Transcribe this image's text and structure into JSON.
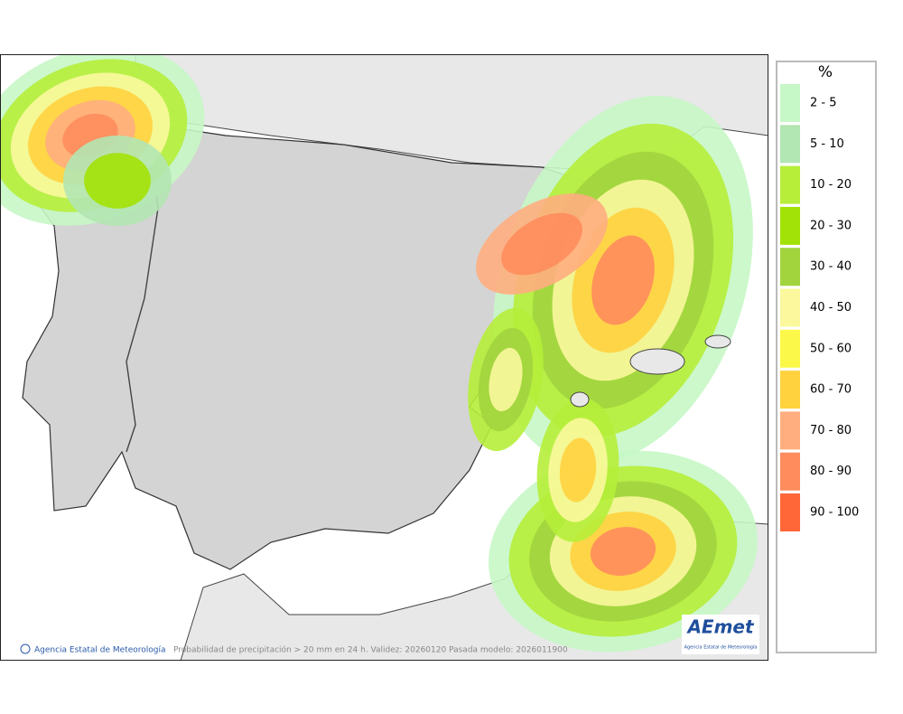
{
  "legend": {
    "title": "%",
    "items": [
      {
        "label": "2 - 5",
        "color": "#c6f7c6"
      },
      {
        "label": "5 - 10",
        "color": "#b2e6b2"
      },
      {
        "label": "10 - 20",
        "color": "#b6ee3a"
      },
      {
        "label": "20 - 30",
        "color": "#a3e206"
      },
      {
        "label": "30 - 40",
        "color": "#a2d43e"
      },
      {
        "label": "40 - 50",
        "color": "#fbf89d"
      },
      {
        "label": "50 - 60",
        "color": "#fbf84a"
      },
      {
        "label": "60 - 70",
        "color": "#ffd23e"
      },
      {
        "label": "70 - 80",
        "color": "#ffae80"
      },
      {
        "label": "80 - 90",
        "color": "#ff8c5c"
      },
      {
        "label": "90 - 100",
        "color": "#ff6638"
      }
    ]
  },
  "footer": {
    "credit": "Agencia Estatal de Meteorología",
    "caption": "Probabilidad de precipitación > 20 mm en 24 h. Validez: 20260120 Pasada modelo: 2026011900"
  },
  "logo": {
    "name": "AEmet",
    "subtitle": "Agencia Estatal de Meteorología"
  }
}
